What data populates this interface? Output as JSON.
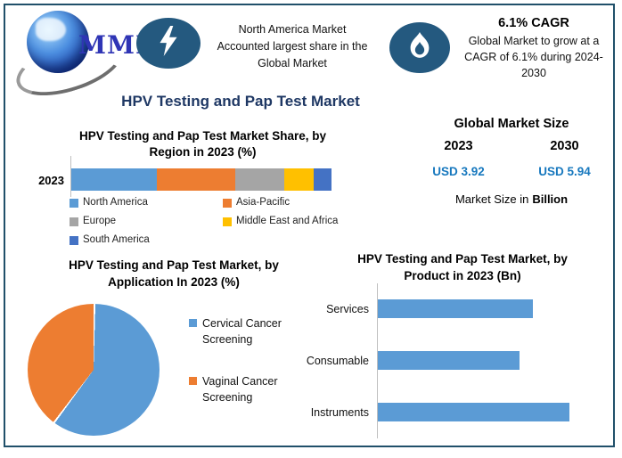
{
  "brand": {
    "logo_text": "MMR"
  },
  "header": {
    "highlight_region": {
      "icon": "lightning-icon",
      "lines": [
        "North America Market",
        "Accounted largest share in the",
        "Global Market"
      ]
    },
    "highlight_cagr": {
      "icon": "flame-icon",
      "title": "6.1% CAGR",
      "lines": [
        "Global Market to grow at a",
        "CAGR of 6.1% during 2024-",
        "2030"
      ]
    }
  },
  "main_title": "HPV Testing and Pap Test Market",
  "market_size": {
    "title": "Global Market Size",
    "years": [
      "2023",
      "2030"
    ],
    "values": [
      "USD 3.92",
      "USD 5.94"
    ],
    "caption_prefix": "Market Size in",
    "caption_bold": "Billion"
  },
  "colors": {
    "frame_border": "#20506A",
    "badge_circle": "#24597F",
    "main_title": "#1F3864",
    "usd_value": "#1778BE",
    "logo_text": "#2F35B5",
    "axis_line": "#BFBFBF"
  },
  "chart_data": [
    {
      "type": "bar",
      "subtype": "stacked-horizontal",
      "title": "HPV Testing and Pap Test Market Share, by Region in 2023 (%)",
      "title_lines": [
        "HPV Testing and Pap Test Market Share, by",
        "Region in 2023 (%)"
      ],
      "categories": [
        "2023"
      ],
      "unit": "%",
      "series": [
        {
          "name": "North America",
          "value": 33,
          "color": "#5B9BD5"
        },
        {
          "name": "Asia-Pacific",
          "value": 30,
          "color": "#ED7D31"
        },
        {
          "name": "Europe",
          "value": 19,
          "color": "#A5A5A5"
        },
        {
          "name": "Middle East and Africa",
          "value": 11,
          "color": "#FFC000"
        },
        {
          "name": "South America",
          "value": 7,
          "color": "#4472C4"
        }
      ],
      "legend_position": "bottom"
    },
    {
      "type": "pie",
      "title": "HPV Testing and Pap Test Market, by Application In 2023 (%)",
      "title_lines": [
        "HPV Testing and Pap Test Market, by",
        "Application In 2023 (%)"
      ],
      "slices": [
        {
          "name": "Cervical Cancer Screening",
          "value": 60,
          "color": "#5B9BD5"
        },
        {
          "name": "Vaginal Cancer Screening",
          "value": 40,
          "color": "#ED7D31"
        }
      ],
      "legend_position": "right"
    },
    {
      "type": "bar",
      "subtype": "horizontal",
      "title": "HPV Testing and Pap Test Market, by Product in 2023 (Bn)",
      "title_lines": [
        "HPV Testing and Pap Test Market, by",
        "Product in 2023 (Bn)"
      ],
      "categories": [
        "Services",
        "Consumable",
        "Instruments"
      ],
      "values_relative": [
        0.81,
        0.74,
        1.0
      ],
      "color": "#5B9BD5",
      "axis_value_labels_visible": false
    }
  ]
}
